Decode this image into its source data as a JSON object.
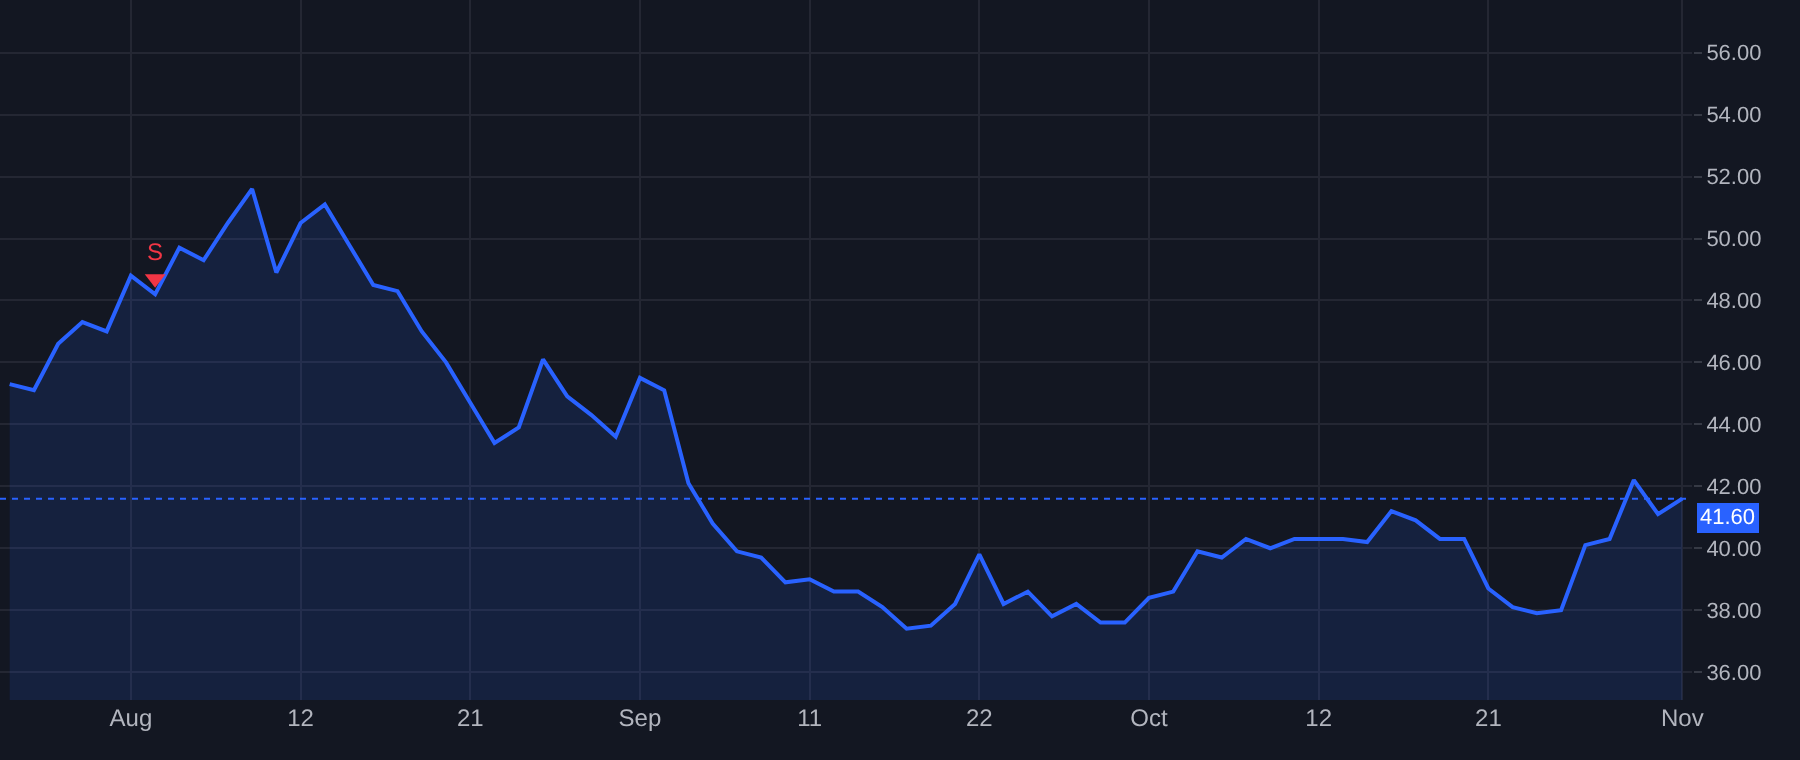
{
  "chart_data": {
    "type": "area",
    "categories": [
      null,
      null,
      null,
      null,
      null,
      "Aug",
      null,
      null,
      null,
      null,
      null,
      null,
      "12",
      null,
      null,
      null,
      null,
      null,
      null,
      "21",
      null,
      null,
      null,
      null,
      null,
      null,
      "Sep",
      null,
      null,
      null,
      null,
      null,
      null,
      "11",
      null,
      null,
      null,
      null,
      null,
      null,
      "22",
      null,
      null,
      null,
      null,
      null,
      null,
      "Oct",
      null,
      null,
      null,
      null,
      null,
      null,
      "12",
      null,
      null,
      null,
      null,
      null,
      null,
      "21",
      null,
      null,
      null,
      null,
      null,
      null,
      null,
      "Nov"
    ],
    "series": [
      {
        "color": "#2962ff",
        "values": [
          45.3,
          45.1,
          46.6,
          47.3,
          47.0,
          48.8,
          48.2,
          49.7,
          49.3,
          50.5,
          51.6,
          48.9,
          50.5,
          51.1,
          49.8,
          48.5,
          48.3,
          47.0,
          46.0,
          44.7,
          43.4,
          43.9,
          46.1,
          44.9,
          44.3,
          43.6,
          45.5,
          45.1,
          42.1,
          40.8,
          39.9,
          39.7,
          38.9,
          39.0,
          38.6,
          38.6,
          38.1,
          37.4,
          37.5,
          38.2,
          39.8,
          38.2,
          38.6,
          37.8,
          38.2,
          37.6,
          37.6,
          38.4,
          38.6,
          39.9,
          39.7,
          40.3,
          40.0,
          40.3,
          40.3,
          40.3,
          40.2,
          41.2,
          40.9,
          40.3,
          40.3,
          38.7,
          38.1,
          37.9,
          38.0,
          40.1,
          40.3,
          42.2,
          41.1,
          41.6
        ]
      },
      {
        "type": "scatter",
        "color": "#f23645",
        "marker": "triangle",
        "values": [
          null,
          null,
          null,
          null,
          null,
          null,
          48.7,
          null,
          null,
          null,
          null,
          null,
          null,
          null,
          null,
          null,
          null,
          null,
          null,
          null,
          null,
          null,
          null,
          null,
          null,
          null,
          null,
          null,
          null,
          null,
          null,
          null,
          null,
          null,
          null,
          null,
          null,
          null,
          null,
          null,
          null,
          null,
          null,
          null,
          null,
          null,
          null,
          null,
          null,
          null,
          null,
          null,
          null,
          null,
          null,
          null,
          null,
          null,
          null,
          null,
          null,
          null,
          null,
          null,
          null,
          null,
          null,
          null,
          null,
          null
        ],
        "value_labels": [
          null,
          null,
          null,
          null,
          null,
          null,
          "S",
          null,
          null,
          null,
          null,
          null,
          null,
          null,
          null,
          null,
          null,
          null,
          null,
          null,
          null,
          null,
          null,
          null,
          null,
          null,
          null,
          null,
          null,
          null,
          null,
          null,
          null,
          null,
          null,
          null,
          null,
          null,
          null,
          null,
          null,
          null,
          null,
          null,
          null,
          null,
          null,
          null,
          null,
          null,
          null,
          null,
          null,
          null,
          null,
          null,
          null,
          null,
          null,
          null,
          null,
          null,
          null,
          null,
          null,
          null,
          null,
          null,
          null,
          null
        ]
      }
    ],
    "ylim": [
      35.1,
      57.7
    ],
    "yticks": [
      {
        "value": 36,
        "label": "36.00"
      },
      {
        "value": 38,
        "label": "38.00"
      },
      {
        "value": 40,
        "label": "40.00"
      },
      {
        "value": 42,
        "label": "42.00"
      },
      {
        "value": 44,
        "label": "44.00"
      },
      {
        "value": 46,
        "label": "46.00"
      },
      {
        "value": 48,
        "label": "48.00"
      },
      {
        "value": 50,
        "label": "50.00"
      },
      {
        "value": 52,
        "label": "52.00"
      },
      {
        "value": 54,
        "label": "54.00"
      },
      {
        "value": 56,
        "label": "56.00"
      }
    ],
    "grid": true,
    "ref_lines": [
      {
        "axis": "y",
        "value": 41.6,
        "label": "41.60",
        "color": "#2962ff",
        "line_style": "dotted"
      }
    ]
  }
}
